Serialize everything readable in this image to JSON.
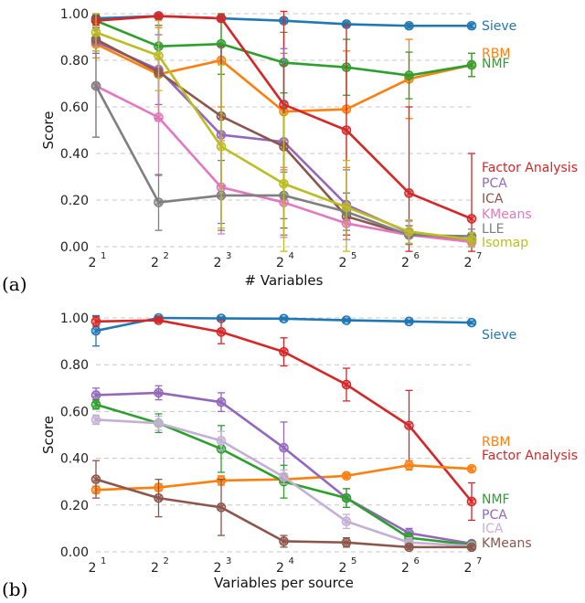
{
  "chart_data": [
    {
      "type": "line",
      "panel": "(a)",
      "xlabel": "# Variables",
      "ylabel": "Score",
      "x_exponents": [
        1,
        2,
        3,
        4,
        5,
        6,
        7
      ],
      "x_tick_labels": [
        "2",
        "2",
        "2",
        "2",
        "2",
        "2",
        "2"
      ],
      "ylim": [
        0,
        1
      ],
      "y_ticks": [
        "0.00",
        "0.20",
        "0.40",
        "0.60",
        "0.80",
        "1.00"
      ],
      "series": [
        {
          "name": "Sieve",
          "color": "#1f77b4",
          "values": [
            0.98,
            0.99,
            0.98,
            0.97,
            0.955,
            0.948,
            0.948
          ],
          "err": [
            0.015,
            0.01,
            0.01,
            0.01,
            0.01,
            0.01,
            0.01
          ]
        },
        {
          "name": "RBM",
          "color": "#ff7f0e",
          "values": [
            0.87,
            0.74,
            0.8,
            0.58,
            0.59,
            0.72,
            0.78
          ],
          "err": [
            0.06,
            0.2,
            0.2,
            0.25,
            0.25,
            0.17,
            0.05
          ]
        },
        {
          "name": "NMF",
          "color": "#2ca02c",
          "values": [
            0.97,
            0.86,
            0.87,
            0.79,
            0.77,
            0.735,
            0.78
          ],
          "err": [
            0.03,
            0.13,
            0.13,
            0.13,
            0.12,
            0.1,
            0.05
          ]
        },
        {
          "name": "Factor Analysis",
          "color": "#d62728",
          "values": [
            0.97,
            0.99,
            0.98,
            0.61,
            0.5,
            0.23,
            0.12
          ],
          "err": [
            0.02,
            0.01,
            0.01,
            0.4,
            0.45,
            0.37,
            0.28
          ]
        },
        {
          "name": "PCA",
          "color": "#9467bd",
          "values": [
            0.88,
            0.76,
            0.48,
            0.45,
            0.18,
            0.06,
            0.03
          ],
          "err": [
            0.05,
            0.15,
            0.38,
            0.4,
            0.15,
            0.05,
            0.03
          ]
        },
        {
          "name": "ICA",
          "color": "#8c564b",
          "values": [
            0.89,
            0.75,
            0.56,
            0.43,
            0.13,
            0.05,
            0.03
          ],
          "err": [
            0.05,
            0.2,
            0.3,
            0.35,
            0.1,
            0.04,
            0.02
          ]
        },
        {
          "name": "KMeans",
          "color": "#e377c2",
          "values": [
            0.69,
            0.555,
            0.255,
            0.19,
            0.1,
            0.05,
            0.02
          ],
          "err": [
            0.22,
            0.25,
            0.2,
            0.15,
            0.07,
            0.04,
            0.02
          ]
        },
        {
          "name": "LLE",
          "color": "#7f7f7f",
          "values": [
            0.69,
            0.19,
            0.22,
            0.22,
            0.15,
            0.05,
            0.045
          ],
          "err": [
            0.22,
            0.12,
            0.15,
            0.1,
            0.08,
            0.04,
            0.03
          ]
        },
        {
          "name": "Isomap",
          "color": "#bcbd22",
          "values": [
            0.92,
            0.82,
            0.43,
            0.27,
            0.17,
            0.065,
            0.03
          ],
          "err": [
            0.08,
            0.15,
            0.35,
            0.3,
            0.2,
            0.05,
            0.03
          ]
        }
      ],
      "legend": [
        {
          "label": "Sieve",
          "color": "#1f77b4"
        },
        {
          "label": "RBM",
          "color": "#ff7f0e"
        },
        {
          "label": "NMF",
          "color": "#2ca02c"
        },
        {
          "label": "Factor Analysis",
          "color": "#d62728"
        },
        {
          "label": "PCA",
          "color": "#9467bd"
        },
        {
          "label": "ICA",
          "color": "#8c564b"
        },
        {
          "label": "KMeans",
          "color": "#e377c2"
        },
        {
          "label": "LLE",
          "color": "#7f7f7f"
        },
        {
          "label": "Isomap",
          "color": "#bcbd22"
        }
      ]
    },
    {
      "type": "line",
      "panel": "(b)",
      "xlabel": "Variables per source",
      "ylabel": "Score",
      "x_exponents": [
        1,
        2,
        3,
        4,
        5,
        6,
        7
      ],
      "x_tick_labels": [
        "2",
        "2",
        "2",
        "2",
        "2",
        "2",
        "2"
      ],
      "ylim": [
        0,
        1
      ],
      "y_ticks": [
        "0.00",
        "0.20",
        "0.40",
        "0.60",
        "0.80",
        "1.00"
      ],
      "series": [
        {
          "name": "Sieve",
          "color": "#1f77b4",
          "values": [
            0.945,
            1.0,
            0.998,
            0.997,
            0.99,
            0.985,
            0.98
          ],
          "err": [
            0.065,
            0.005,
            0.005,
            0.005,
            0.005,
            0.005,
            0.005
          ]
        },
        {
          "name": "Factor Analysis",
          "color": "#d62728",
          "values": [
            0.985,
            0.99,
            0.94,
            0.855,
            0.715,
            0.54,
            0.215
          ],
          "err": [
            0.02,
            0.01,
            0.05,
            0.06,
            0.07,
            0.15,
            0.08
          ]
        },
        {
          "name": "RBM",
          "color": "#ff7f0e",
          "values": [
            0.265,
            0.275,
            0.305,
            0.31,
            0.325,
            0.37,
            0.355
          ],
          "err": [
            0.015,
            0.015,
            0.02,
            0.02,
            0.01,
            0.02,
            0.01
          ]
        },
        {
          "name": "PCA",
          "color": "#9467bd",
          "values": [
            0.67,
            0.68,
            0.64,
            0.445,
            0.23,
            0.08,
            0.035
          ],
          "err": [
            0.03,
            0.03,
            0.04,
            0.11,
            0.04,
            0.02,
            0.01
          ]
        },
        {
          "name": "NMF",
          "color": "#2ca02c",
          "values": [
            0.63,
            0.55,
            0.44,
            0.3,
            0.23,
            0.06,
            0.03
          ],
          "err": [
            0.02,
            0.04,
            0.1,
            0.07,
            0.04,
            0.02,
            0.01
          ]
        },
        {
          "name": "ICA",
          "color": "#c5b0d5",
          "values": [
            0.565,
            0.55,
            0.475,
            0.32,
            0.13,
            0.04,
            0.025
          ],
          "err": [
            0.02,
            0.03,
            0.04,
            0.03,
            0.03,
            0.02,
            0.01
          ]
        },
        {
          "name": "KMeans",
          "color": "#8c564b",
          "values": [
            0.31,
            0.23,
            0.19,
            0.045,
            0.04,
            0.02,
            0.02
          ],
          "err": [
            0.08,
            0.08,
            0.12,
            0.025,
            0.02,
            0.01,
            0.01
          ]
        }
      ],
      "legend": [
        {
          "label": "Sieve",
          "color": "#1f77b4"
        },
        {
          "label": "RBM",
          "color": "#ff7f0e"
        },
        {
          "label": "Factor Analysis",
          "color": "#d62728"
        },
        {
          "label": "NMF",
          "color": "#2ca02c"
        },
        {
          "label": "PCA",
          "color": "#9467bd"
        },
        {
          "label": "ICA",
          "color": "#c5b0d5"
        },
        {
          "label": "KMeans",
          "color": "#8c564b"
        }
      ]
    }
  ]
}
